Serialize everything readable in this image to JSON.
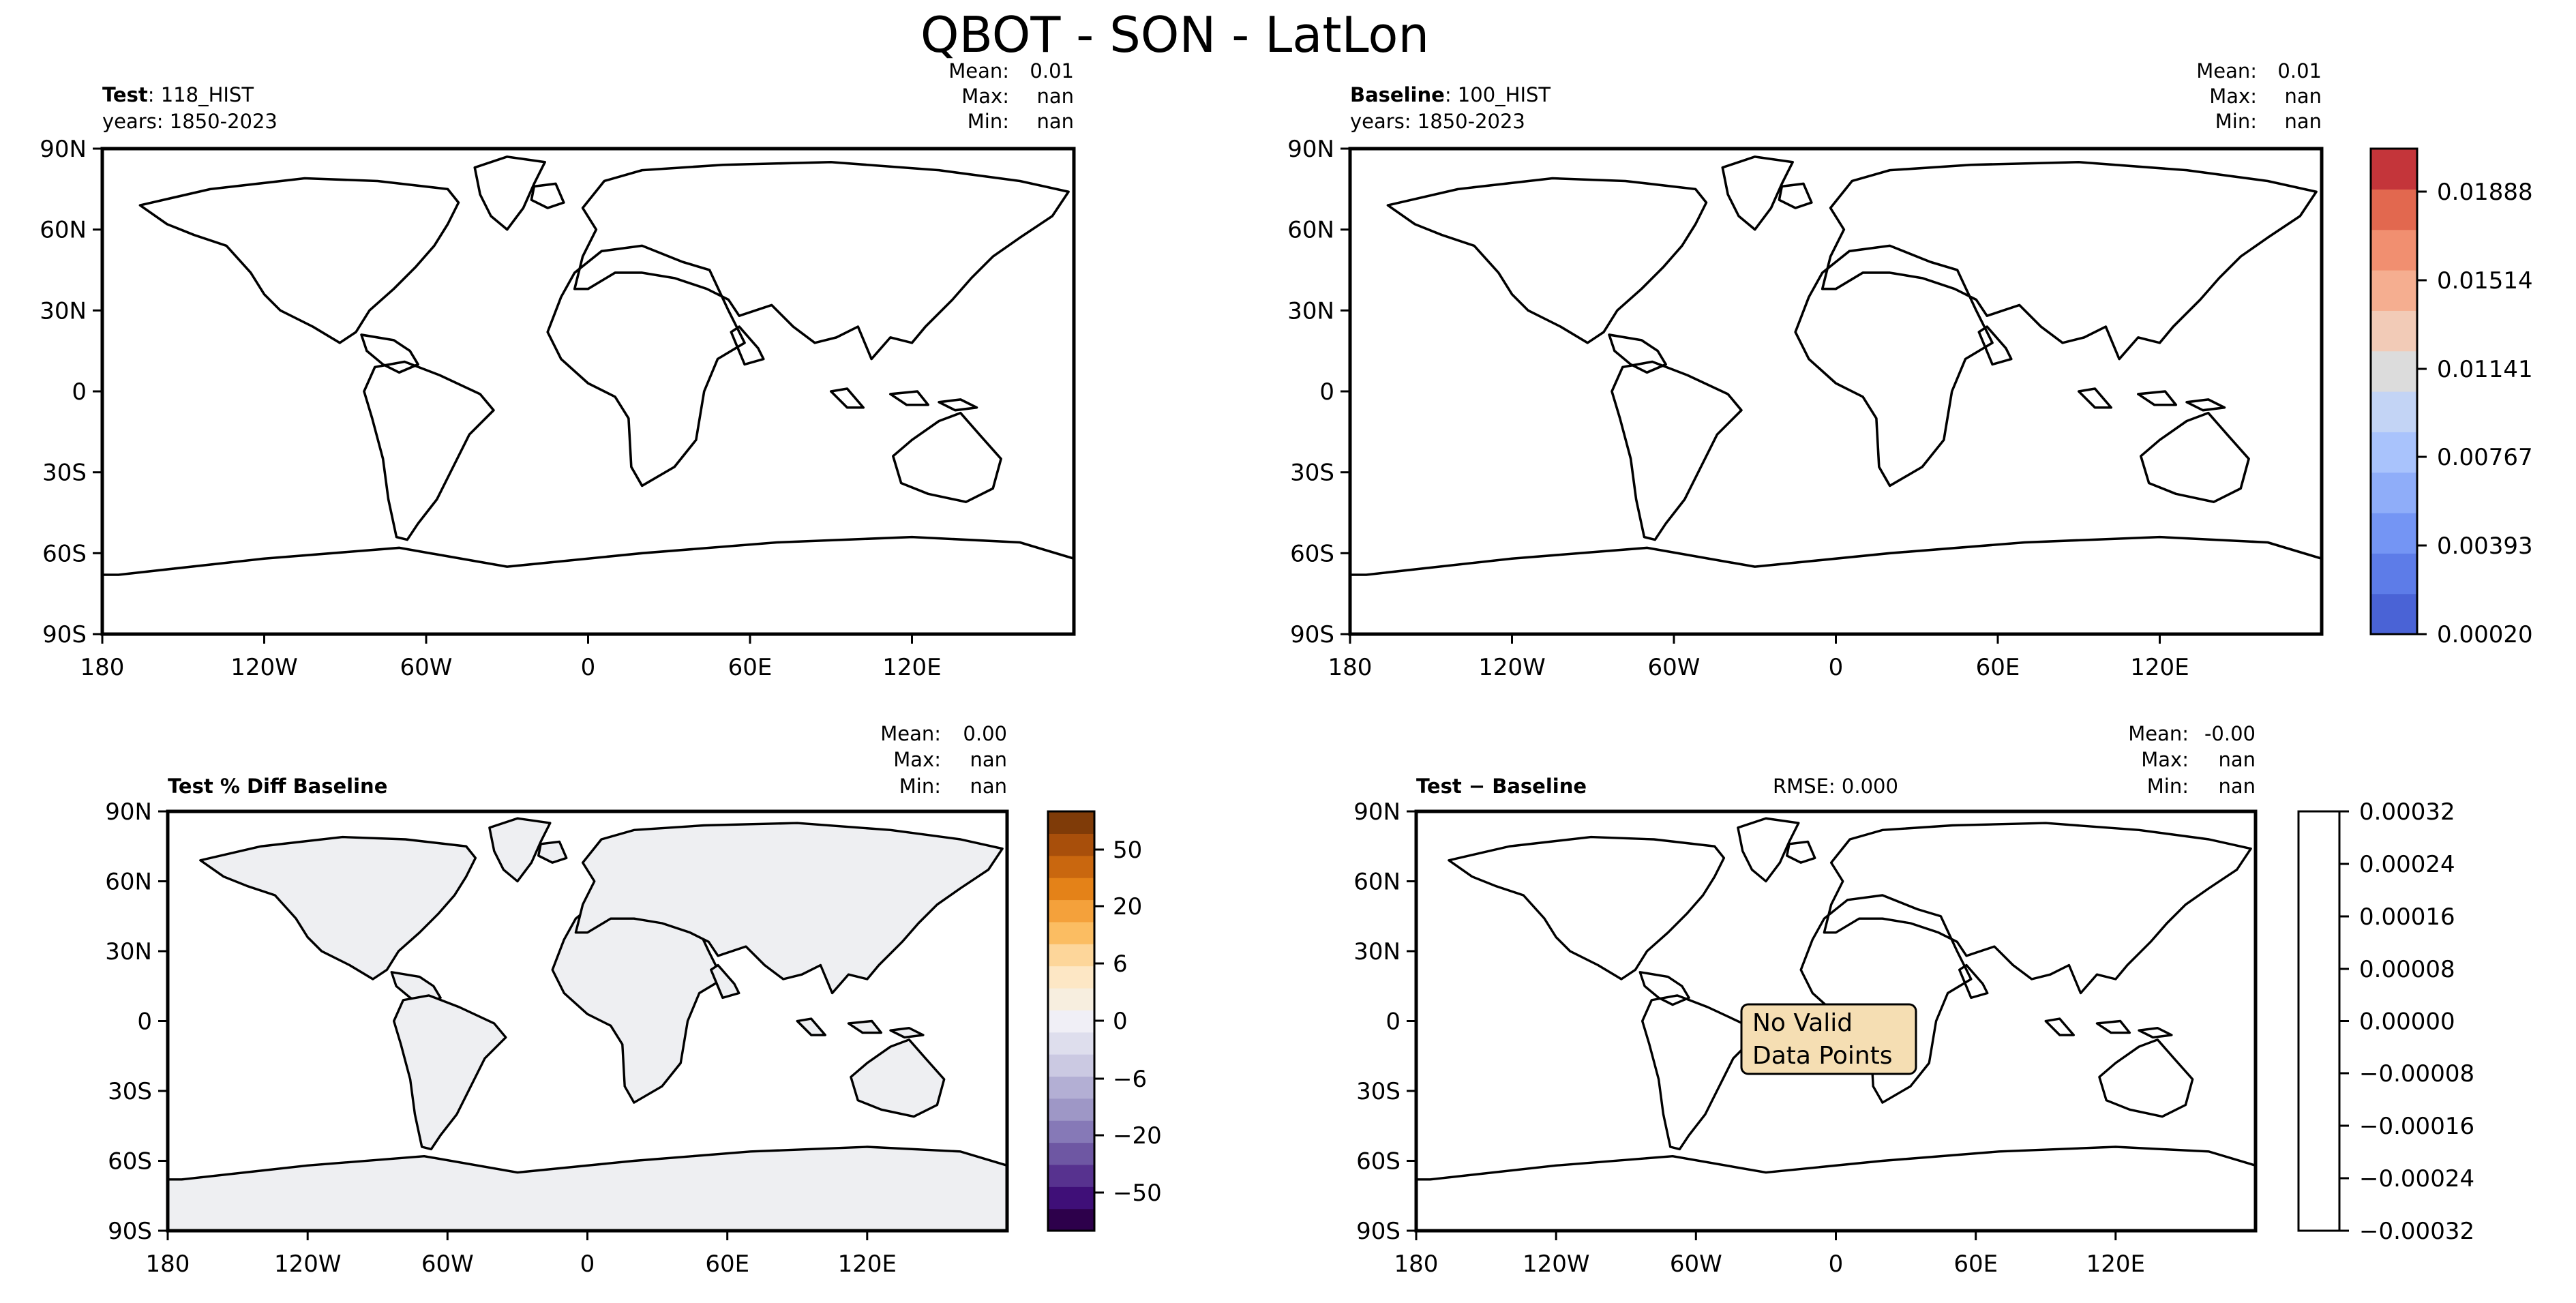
{
  "figure": {
    "title": "QBOT - SON - LatLon"
  },
  "colors": {
    "seq": [
      "#4a63d6",
      "#5d7ce8",
      "#7495f4",
      "#8fadf9",
      "#a9c3fc",
      "#c3d4f5",
      "#dcdcdc",
      "#f2cbb7",
      "#f5ae90",
      "#f18f70",
      "#e2684f",
      "#c4353a"
    ],
    "div_brown": [
      "#7f3b08",
      "#a84f0b",
      "#c9670f",
      "#e48218",
      "#f4a13b",
      "#fbbd62",
      "#fdd69a",
      "#fde7c5",
      "#f7eedf"
    ],
    "div_purple": [
      "#f0eff6",
      "#dedeed",
      "#cbc9e2",
      "#b3afd4",
      "#9e97c6",
      "#8679b7",
      "#6e57a3",
      "#57328f",
      "#3f0f78",
      "#2d004b"
    ],
    "land_fill": "#eeeff2",
    "annot_bg": "#f5deb3"
  },
  "chart_data": [
    {
      "type": "heatmap",
      "panel_title_bold": "Test",
      "panel_title_rest": ": 118_HIST",
      "subtitle": "years: 1850-2023",
      "stats": {
        "labels": [
          "Mean:",
          "Max:",
          "Min:"
        ],
        "values": [
          "0.01",
          "nan",
          "nan"
        ]
      },
      "x_ticks": [
        "180",
        "120W",
        "60W",
        "0",
        "60E",
        "120E"
      ],
      "y_ticks": [
        "90N",
        "60N",
        "30N",
        "0",
        "30S",
        "60S",
        "90S"
      ],
      "xlim": [
        -180,
        180
      ],
      "ylim": [
        -90,
        90
      ]
    },
    {
      "type": "heatmap",
      "panel_title_bold": "Baseline",
      "panel_title_rest": ": 100_HIST",
      "subtitle": "years: 1850-2023",
      "stats": {
        "labels": [
          "Mean:",
          "Max:",
          "Min:"
        ],
        "values": [
          "0.01",
          "nan",
          "nan"
        ]
      },
      "x_ticks": [
        "180",
        "120W",
        "60W",
        "0",
        "60E",
        "120E"
      ],
      "y_ticks": [
        "90N",
        "60N",
        "30N",
        "0",
        "30S",
        "60S",
        "90S"
      ],
      "colorbar": {
        "ticks": [
          "0.00020",
          "0.00393",
          "0.00767",
          "0.01141",
          "0.01514",
          "0.01888"
        ],
        "range": [
          0.0002,
          0.0208
        ]
      }
    },
    {
      "type": "heatmap",
      "panel_title": "Test % Diff Baseline",
      "stats": {
        "labels": [
          "Mean:",
          "Max:",
          "Min:"
        ],
        "values": [
          "0.00",
          "nan",
          "nan"
        ]
      },
      "x_ticks": [
        "180",
        "120W",
        "60W",
        "0",
        "60E",
        "120E"
      ],
      "y_ticks": [
        "90N",
        "60N",
        "30N",
        "0",
        "30S",
        "60S",
        "90S"
      ],
      "colorbar": {
        "ticks": [
          "50",
          "20",
          "6",
          "0",
          "−6",
          "−20",
          "−50"
        ]
      }
    },
    {
      "type": "heatmap",
      "panel_title": "Test − Baseline",
      "rmse": "RMSE: 0.000",
      "stats": {
        "labels": [
          "Mean:",
          "Max:",
          "Min:"
        ],
        "values": [
          "-0.00",
          "nan",
          "nan"
        ]
      },
      "x_ticks": [
        "180",
        "120W",
        "60W",
        "0",
        "60E",
        "120E"
      ],
      "y_ticks": [
        "90N",
        "60N",
        "30N",
        "0",
        "30S",
        "60S",
        "90S"
      ],
      "annotation": [
        "No Valid",
        "Data Points"
      ],
      "colorbar": {
        "ticks": [
          "0.00032",
          "0.00024",
          "0.00016",
          "0.00008",
          "0.00000",
          "−0.00008",
          "−0.00016",
          "−0.00024",
          "−0.00032"
        ]
      }
    }
  ]
}
